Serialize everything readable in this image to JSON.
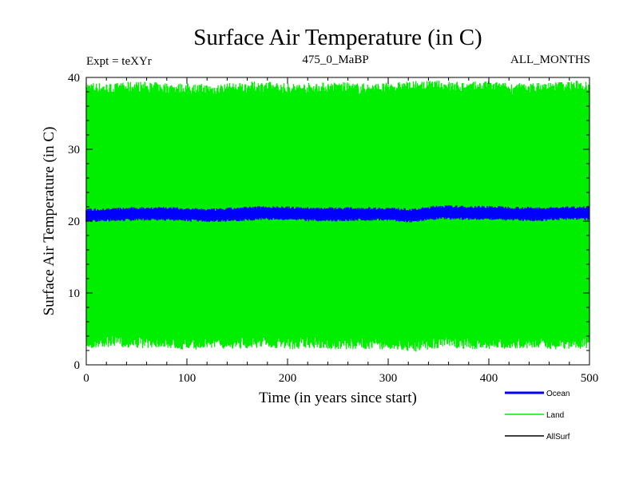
{
  "chart_data": {
    "type": "line",
    "title": "Surface Air Temperature (in C)",
    "subtitle_left": "Expt = teXYr",
    "subtitle_center": "475_0_MaBP",
    "subtitle_right": "ALL_MONTHS",
    "xlabel": "Time (in years since start)",
    "ylabel": "Surface Air Temperature (in C)",
    "xlim": [
      0,
      500
    ],
    "ylim": [
      0,
      40
    ],
    "x_ticks": [
      0,
      100,
      200,
      300,
      400,
      500
    ],
    "y_ticks": [
      0,
      10,
      20,
      30,
      40
    ],
    "grid": false,
    "legend_position": "bottom-right, below plot",
    "series": [
      {
        "name": "Ocean",
        "color": "#0000ff",
        "style": "seasonal-band",
        "x": [
          0,
          25,
          50,
          75,
          100,
          125,
          150,
          175,
          200,
          225,
          250,
          275,
          300,
          325,
          350,
          375,
          400,
          425,
          450,
          475,
          500
        ],
        "y_min": [
          20.2,
          20.3,
          20.4,
          20.4,
          20.3,
          20.2,
          20.3,
          20.5,
          20.4,
          20.3,
          20.3,
          20.4,
          20.4,
          20.1,
          20.6,
          20.5,
          20.5,
          20.4,
          20.3,
          20.5,
          20.5
        ],
        "y_max": [
          21.4,
          21.5,
          21.6,
          21.7,
          21.5,
          21.4,
          21.6,
          21.8,
          21.7,
          21.6,
          21.6,
          21.6,
          21.6,
          21.4,
          21.9,
          21.8,
          21.8,
          21.7,
          21.6,
          21.7,
          21.8
        ]
      },
      {
        "name": "Land",
        "color": "#00ee00",
        "style": "seasonal-band",
        "x": [
          0,
          25,
          50,
          75,
          100,
          125,
          150,
          175,
          200,
          225,
          250,
          275,
          300,
          325,
          350,
          375,
          400,
          425,
          450,
          475,
          500
        ],
        "y_min": [
          3.8,
          4.1,
          3.9,
          4.0,
          3.6,
          3.9,
          3.8,
          4.0,
          3.7,
          3.9,
          3.6,
          3.8,
          3.7,
          3.4,
          3.9,
          3.8,
          3.7,
          3.9,
          3.8,
          3.7,
          3.9
        ],
        "y_max": [
          37.8,
          37.6,
          37.9,
          37.7,
          37.6,
          37.5,
          37.7,
          37.9,
          37.6,
          37.7,
          37.8,
          37.6,
          37.7,
          37.9,
          38.0,
          37.8,
          37.9,
          37.6,
          37.7,
          37.9,
          38.1
        ]
      },
      {
        "name": "AllSurf",
        "color": "#000000",
        "style": "hidden-behind",
        "x": [],
        "y": []
      }
    ]
  }
}
